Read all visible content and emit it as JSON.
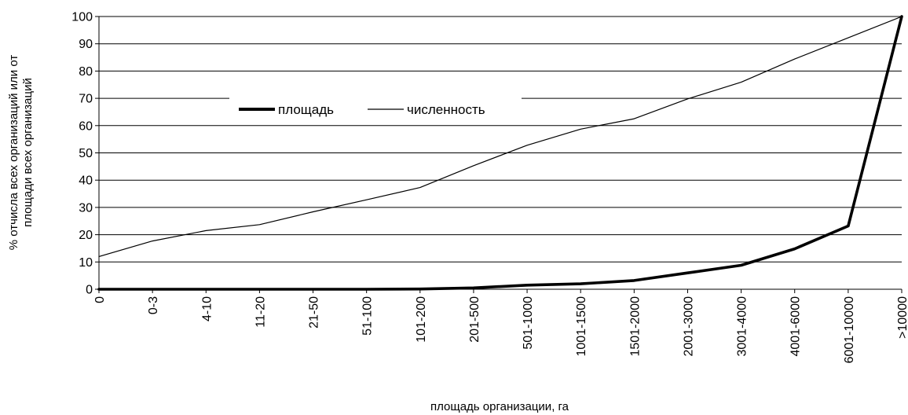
{
  "chart_data": {
    "type": "line",
    "categories": [
      "0",
      "0-3",
      "4-10",
      "11-20",
      "21-50",
      "51-100",
      "101-200",
      "201-500",
      "501-1000",
      "1001-1500",
      "1501-2000",
      "2001-3000",
      "3001-4000",
      "4001-6000",
      "6001-10000",
      ">10000"
    ],
    "series": [
      {
        "name": "площадь",
        "values": [
          0,
          0,
          0,
          0,
          0,
          0,
          0.1,
          0.5,
          1.5,
          2.0,
          3.2,
          6.0,
          8.8,
          14.8,
          23.2,
          100
        ],
        "color": "#000000",
        "emphasis": "thick"
      },
      {
        "name": "численность",
        "values": [
          12.0,
          17.7,
          21.5,
          23.7,
          28.4,
          32.8,
          37.3,
          45.3,
          52.8,
          58.7,
          62.5,
          69.8,
          75.9,
          84.4,
          92.2,
          100
        ],
        "color": "#000000",
        "emphasis": "thin"
      }
    ],
    "xlabel": "площадь организации, га",
    "ylabel_lines": [
      "% отчисла всех организаций или от",
      "площади всех организаций"
    ],
    "ylim": [
      0,
      100
    ],
    "yticks": [
      0,
      10,
      20,
      30,
      40,
      50,
      60,
      70,
      80,
      90,
      100
    ],
    "grid": "horizontal",
    "legend_placement": "upper-left-inside"
  }
}
